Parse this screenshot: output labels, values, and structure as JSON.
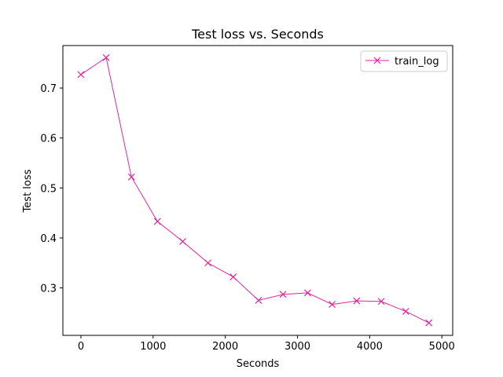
{
  "chart_data": {
    "type": "line",
    "title": "Test loss  vs. Seconds",
    "xlabel": "Seconds",
    "ylabel": "Test loss",
    "xlim": [
      -250,
      5150
    ],
    "ylim": [
      0.205,
      0.785
    ],
    "xticks": [
      0,
      1000,
      2000,
      3000,
      4000,
      5000
    ],
    "xtick_labels": [
      "0",
      "1000",
      "2000",
      "3000",
      "4000",
      "5000"
    ],
    "yticks": [
      0.3,
      0.4,
      0.5,
      0.6,
      0.7
    ],
    "ytick_labels": [
      "0.3",
      "0.4",
      "0.5",
      "0.6",
      "0.7"
    ],
    "grid": false,
    "legend_position": "top-right",
    "marker": "x",
    "series": [
      {
        "name": "train_log",
        "color": "#e0259b",
        "x": [
          0,
          350,
          700,
          1060,
          1410,
          1760,
          2110,
          2460,
          2800,
          3140,
          3480,
          3820,
          4160,
          4500,
          4820
        ],
        "y": [
          0.727,
          0.761,
          0.522,
          0.433,
          0.393,
          0.35,
          0.322,
          0.275,
          0.287,
          0.29,
          0.267,
          0.274,
          0.273,
          0.253,
          0.23
        ]
      }
    ]
  }
}
